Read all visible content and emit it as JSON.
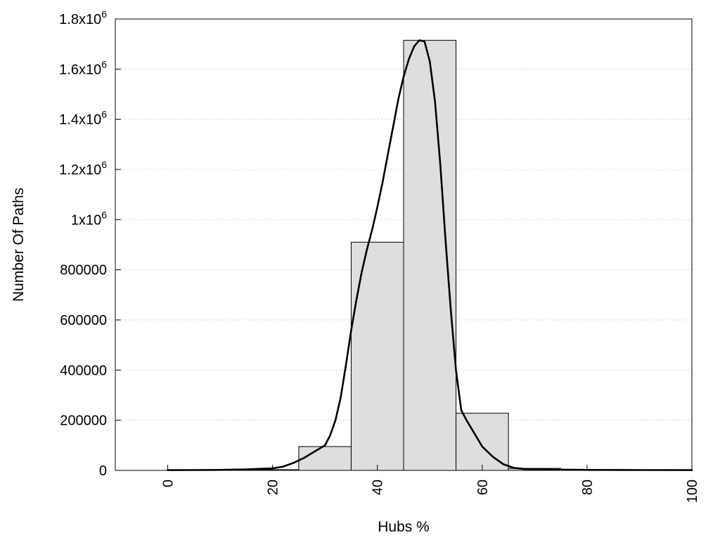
{
  "chart_data": {
    "type": "bar",
    "xlabel": "Hubs %",
    "ylabel": "Number Of Paths",
    "xlim": [
      -10,
      100
    ],
    "ylim": [
      0,
      1800000
    ],
    "x_ticks": [
      "0",
      "20",
      "40",
      "60",
      "80",
      "100"
    ],
    "x_tick_values": [
      0,
      20,
      40,
      60,
      80,
      100
    ],
    "y_ticks": [
      {
        "value": 0,
        "label": "0",
        "exp": ""
      },
      {
        "value": 200000,
        "label": "200000",
        "exp": ""
      },
      {
        "value": 400000,
        "label": "400000",
        "exp": ""
      },
      {
        "value": 600000,
        "label": "600000",
        "exp": ""
      },
      {
        "value": 800000,
        "label": "800000",
        "exp": ""
      },
      {
        "value": 1000000,
        "label": "1x10",
        "exp": "6"
      },
      {
        "value": 1200000,
        "label": "1.2x10",
        "exp": "6"
      },
      {
        "value": 1400000,
        "label": "1.4x10",
        "exp": "6"
      },
      {
        "value": 1600000,
        "label": "1.6x10",
        "exp": "6"
      },
      {
        "value": 1800000,
        "label": "1.8x10",
        "exp": "6"
      }
    ],
    "grid": true,
    "bin_width": 10,
    "bars": [
      {
        "x": 0,
        "value": 0
      },
      {
        "x": 10,
        "value": 0
      },
      {
        "x": 20,
        "value": 3000
      },
      {
        "x": 30,
        "value": 95000
      },
      {
        "x": 40,
        "value": 910000
      },
      {
        "x": 50,
        "value": 1715000
      },
      {
        "x": 60,
        "value": 228000
      },
      {
        "x": 70,
        "value": 8000
      },
      {
        "x": 80,
        "value": 0
      },
      {
        "x": 90,
        "value": 0
      }
    ],
    "curve": {
      "x": [
        0,
        5,
        10,
        15,
        20,
        22,
        24,
        26,
        28,
        30,
        31,
        32,
        33,
        34,
        35,
        36,
        37,
        38,
        39,
        40,
        41,
        42,
        43,
        44,
        45,
        46,
        47,
        48,
        49,
        50,
        51,
        52,
        53,
        54,
        55,
        56,
        57,
        58,
        59,
        60,
        62,
        64,
        66,
        68,
        70,
        75,
        80,
        90,
        100
      ],
      "y": [
        1000,
        1500,
        2000,
        4000,
        8000,
        15000,
        30000,
        50000,
        75000,
        100000,
        140000,
        200000,
        290000,
        420000,
        560000,
        680000,
        790000,
        880000,
        960000,
        1050000,
        1150000,
        1260000,
        1370000,
        1480000,
        1570000,
        1640000,
        1690000,
        1715000,
        1710000,
        1630000,
        1470000,
        1220000,
        920000,
        640000,
        400000,
        240000,
        200000,
        165000,
        130000,
        95000,
        55000,
        25000,
        10000,
        6000,
        4000,
        3000,
        2000,
        1500,
        1000
      ]
    }
  }
}
